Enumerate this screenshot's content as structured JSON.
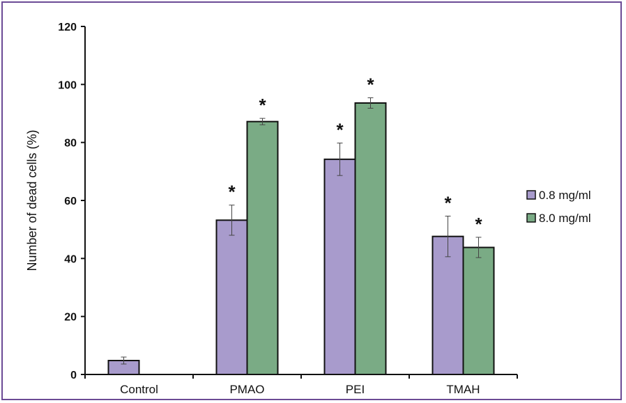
{
  "chart_data": {
    "type": "bar",
    "categories": [
      "Control",
      "PMAO",
      "PEI",
      "TMAH"
    ],
    "series": [
      {
        "name": "0.8 mg/ml",
        "color": "#a89bcc",
        "values": [
          4.8,
          53.2,
          74.2,
          47.6
        ],
        "errors": [
          1.2,
          5.2,
          5.6,
          7.0
        ],
        "significance": [
          "",
          "*",
          "*",
          "*"
        ]
      },
      {
        "name": "8.0 mg/ml",
        "color": "#7aab85",
        "values": [
          null,
          87.2,
          93.6,
          43.8
        ],
        "errors": [
          null,
          1.1,
          1.8,
          3.5
        ],
        "significance": [
          "",
          "*",
          "*",
          "*"
        ]
      }
    ],
    "ylabel": "Number of dead cells (%)",
    "xlabel": "",
    "ylim": [
      0,
      120
    ],
    "yticks": [
      0,
      20,
      40,
      60,
      80,
      100,
      120
    ],
    "legend_position": "right",
    "grid": false
  }
}
